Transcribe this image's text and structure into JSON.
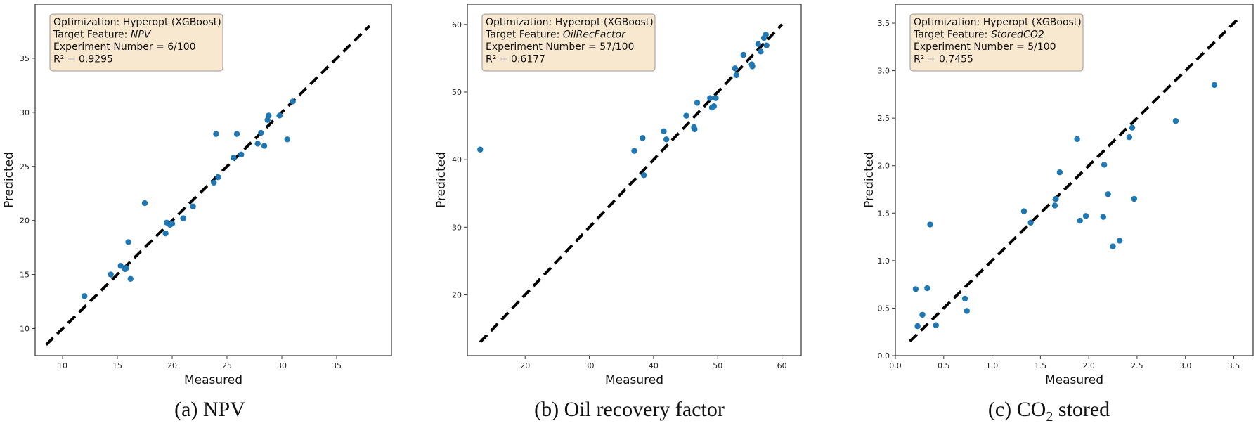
{
  "chart_data": [
    {
      "type": "scatter",
      "panel": "a",
      "caption": "(a) NPV",
      "xlabel": "Measured",
      "ylabel": "Predicted",
      "xlim": [
        7.5,
        40
      ],
      "ylim": [
        7.5,
        40
      ],
      "xticks": [
        10,
        15,
        20,
        25,
        30,
        35
      ],
      "yticks": [
        10,
        15,
        20,
        25,
        30,
        35
      ],
      "grid": false,
      "annotation": {
        "line1": "Optimization: Hyperopt (XGBoost)",
        "line2_prefix": "Target Feature: ",
        "line2_feature": "NPV",
        "line3": "Experiment Number = 6/100",
        "line4_r2": "R² = 0.9295"
      },
      "identity_line": [
        [
          8.5,
          8.5
        ],
        [
          38,
          38
        ]
      ],
      "point_color": "#1f77b4",
      "x": [
        12.0,
        14.4,
        15.3,
        15.7,
        15.8,
        16.0,
        16.2,
        17.5,
        19.4,
        19.5,
        19.8,
        20.0,
        21.0,
        21.9,
        23.8,
        24.0,
        24.2,
        25.6,
        25.9,
        26.3,
        27.8,
        28.1,
        28.4,
        28.7,
        28.8,
        29.8,
        30.5,
        31.0
      ],
      "y": [
        13.0,
        15.0,
        15.8,
        15.5,
        15.6,
        18.0,
        14.6,
        21.6,
        18.8,
        19.8,
        19.6,
        19.7,
        20.2,
        21.3,
        23.5,
        28.0,
        24.0,
        25.8,
        28.0,
        26.1,
        27.1,
        28.1,
        26.9,
        29.3,
        29.7,
        29.7,
        27.5,
        31.0
      ]
    },
    {
      "type": "scatter",
      "panel": "b",
      "caption": "(b) Oil recovery factor",
      "xlabel": "Measured",
      "ylabel": "Predicted",
      "xlim": [
        11,
        63
      ],
      "ylim": [
        11,
        63
      ],
      "xticks": [
        20,
        30,
        40,
        50,
        60
      ],
      "yticks": [
        20,
        30,
        40,
        50,
        60
      ],
      "grid": false,
      "annotation": {
        "line1": "Optimization: Hyperopt (XGBoost)",
        "line2_prefix": "Target Feature: ",
        "line2_feature": "OilRecFactor",
        "line3": "Experiment Number = 57/100",
        "line4_r2": "R² = 0.6177"
      },
      "identity_line": [
        [
          13,
          13
        ],
        [
          60,
          60
        ]
      ],
      "point_color": "#1f77b4",
      "x": [
        13.0,
        37.0,
        38.3,
        38.5,
        41.6,
        42.0,
        45.1,
        46.3,
        46.4,
        46.8,
        48.8,
        49.1,
        49.4,
        49.7,
        52.7,
        52.9,
        54.0,
        55.3,
        55.4,
        56.3,
        56.7,
        57.2,
        57.5,
        57.6
      ],
      "y": [
        41.5,
        41.3,
        43.2,
        37.7,
        44.2,
        43.0,
        46.5,
        44.8,
        44.5,
        48.4,
        49.1,
        47.7,
        47.9,
        49.1,
        53.5,
        52.5,
        55.5,
        54.1,
        53.8,
        57.1,
        56.0,
        58.0,
        58.5,
        56.9
      ]
    },
    {
      "type": "scatter",
      "panel": "c",
      "caption_prefix": "(c) CO",
      "caption_sub": "2",
      "caption_suffix": " stored",
      "xlabel": "Measured",
      "ylabel": "Predicted",
      "xlim": [
        0,
        3.7
      ],
      "ylim": [
        0,
        3.7
      ],
      "xticks": [
        0.0,
        0.5,
        1.0,
        1.5,
        2.0,
        2.5,
        3.0,
        3.5
      ],
      "yticks": [
        0.0,
        0.5,
        1.0,
        1.5,
        2.0,
        2.5,
        3.0,
        3.5
      ],
      "grid": false,
      "annotation": {
        "line1": "Optimization: Hyperopt (XGBoost)",
        "line2_prefix": "Target Feature: ",
        "line2_feature": "StoredCO2",
        "line3": "Experiment Number = 5/100",
        "line4_r2": "R² = 0.7455"
      },
      "identity_line": [
        [
          0.15,
          0.15
        ],
        [
          3.55,
          3.55
        ]
      ],
      "point_color": "#1f77b4",
      "x": [
        0.21,
        0.23,
        0.28,
        0.33,
        0.36,
        0.42,
        0.72,
        0.74,
        1.33,
        1.4,
        1.65,
        1.66,
        1.7,
        1.88,
        1.91,
        1.97,
        2.15,
        2.16,
        2.2,
        2.25,
        2.32,
        2.42,
        2.45,
        2.47,
        2.9,
        3.3
      ],
      "y": [
        0.7,
        0.31,
        0.43,
        0.71,
        1.38,
        0.32,
        0.6,
        0.47,
        1.52,
        1.4,
        1.58,
        1.65,
        1.93,
        2.28,
        1.42,
        1.47,
        1.46,
        2.01,
        1.7,
        1.15,
        1.21,
        2.3,
        2.4,
        1.65,
        2.47,
        2.85
      ]
    }
  ]
}
